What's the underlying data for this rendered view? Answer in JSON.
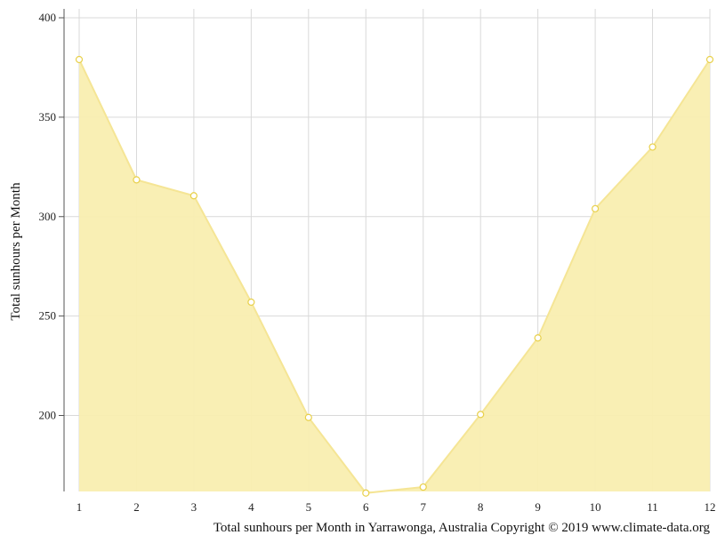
{
  "chart_data": {
    "type": "area",
    "x": [
      1,
      2,
      3,
      4,
      5,
      6,
      7,
      8,
      9,
      10,
      11,
      12
    ],
    "series": [
      {
        "values": [
          379,
          318.5,
          310.5,
          257,
          199,
          161,
          164,
          200.5,
          239,
          304,
          335,
          379
        ]
      }
    ],
    "xlabel": "Total sunhours per Month in Yarrawonga, Australia Copyright © 2019 www.climate-data.org",
    "ylabel": "Total sunhours per Month",
    "xticks": [
      "1",
      "2",
      "3",
      "4",
      "5",
      "6",
      "7",
      "8",
      "9",
      "10",
      "11",
      "12"
    ],
    "yticks": [
      200,
      250,
      300,
      350,
      400
    ],
    "ylim": [
      161,
      400
    ],
    "grid": true,
    "colors": {
      "fill": "#f9eeb0",
      "line": "#f5e595",
      "marker": "#e8d04a",
      "grid": "#d9d9d9"
    }
  }
}
